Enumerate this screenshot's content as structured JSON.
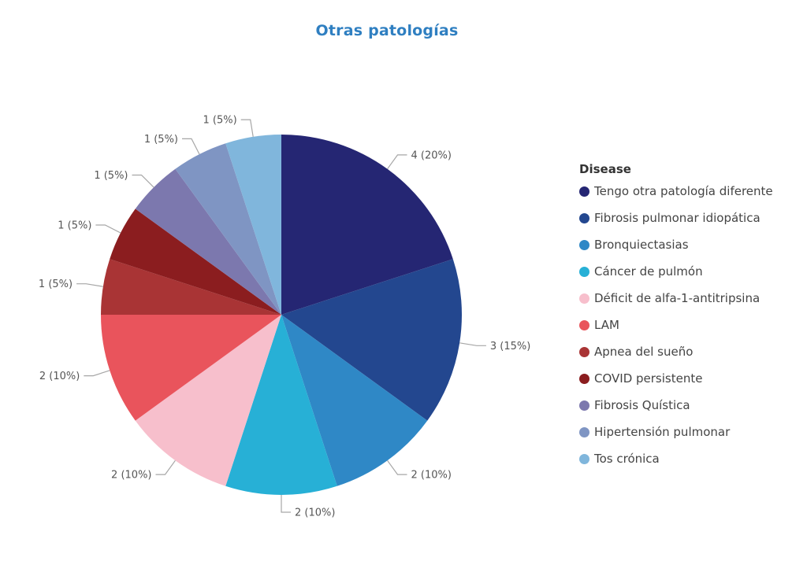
{
  "chart_data": {
    "type": "pie",
    "title": "Otras patologías",
    "legend_title": "Disease",
    "legend_position": "right",
    "slices": [
      {
        "name": "Tengo otra patología diferente",
        "value": 4,
        "label": "4 (20%)",
        "color": "#252673"
      },
      {
        "name": "Fibrosis pulmonar idiopática",
        "value": 3,
        "label": "3 (15%)",
        "color": "#23478f"
      },
      {
        "name": "Bronquiectasias",
        "value": 2,
        "label": "2 (10%)",
        "color": "#2f88c6"
      },
      {
        "name": "Cáncer de pulmón",
        "value": 2,
        "label": "2 (10%)",
        "color": "#27b0d6"
      },
      {
        "name": "Déficit de alfa-1-antitripsina",
        "value": 2,
        "label": "2 (10%)",
        "color": "#f7bfcc"
      },
      {
        "name": "LAM",
        "value": 2,
        "label": "2 (10%)",
        "color": "#e9545c"
      },
      {
        "name": "Apnea del sueño",
        "value": 1,
        "label": "1 (5%)",
        "color": "#a93435"
      },
      {
        "name": "COVID persistente",
        "value": 1,
        "label": "1 (5%)",
        "color": "#8b1d1f"
      },
      {
        "name": "Fibrosis Quística",
        "value": 1,
        "label": "1 (5%)",
        "color": "#7c78ae"
      },
      {
        "name": "Hipertensión pulmonar",
        "value": 1,
        "label": "1 (5%)",
        "color": "#7f95c3"
      },
      {
        "name": "Tos crónica",
        "value": 1,
        "label": "1 (5%)",
        "color": "#80b6dc"
      }
    ]
  }
}
